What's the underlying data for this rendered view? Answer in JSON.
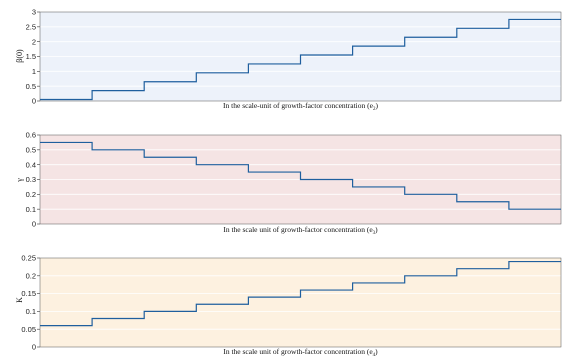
{
  "chart_data": [
    {
      "type": "line",
      "step": true,
      "bg_color": "#edf2fa",
      "line_color": "#1f5f9e",
      "ylabel": "β(0)",
      "xlabel": "In the scale-unit of growth-factor concentration (e",
      "xlabel_sub": "2",
      "xlabel_end": ")",
      "ylim": [
        0,
        3
      ],
      "yticks": [
        0,
        0.5,
        1,
        1.5,
        2,
        2.5,
        3
      ],
      "ytick_labels": [
        "0",
        "0.5",
        "1",
        "1.5",
        "2",
        "2.5",
        "3"
      ],
      "grid": true,
      "values": [
        0.05,
        0.35,
        0.65,
        0.95,
        1.25,
        1.55,
        1.85,
        2.15,
        2.45,
        2.75
      ]
    },
    {
      "type": "line",
      "step": true,
      "bg_color": "#f5e4e4",
      "line_color": "#1f5f9e",
      "ylabel": "γ",
      "xlabel": "In the scale unit of growth-factor concentration (e",
      "xlabel_sub": "3",
      "xlabel_end": ")",
      "ylim": [
        0,
        0.6
      ],
      "yticks": [
        0,
        0.1,
        0.2,
        0.3,
        0.4,
        0.5,
        0.6
      ],
      "ytick_labels": [
        "0",
        "0.1",
        "0.2",
        "0.3",
        "0.4",
        "0.5",
        "0.6"
      ],
      "grid": true,
      "values": [
        0.55,
        0.5,
        0.45,
        0.4,
        0.35,
        0.3,
        0.25,
        0.2,
        0.15,
        0.1
      ]
    },
    {
      "type": "line",
      "step": true,
      "bg_color": "#fdf1e0",
      "line_color": "#1f5f9e",
      "ylabel": "K",
      "xlabel": "In the scale unit of growth-factor concentration (e",
      "xlabel_sub": "4",
      "xlabel_end": ")",
      "ylim": [
        0,
        0.25
      ],
      "yticks": [
        0,
        0.05,
        0.1,
        0.15,
        0.2,
        0.25
      ],
      "ytick_labels": [
        "0",
        "0.05",
        "0.1",
        "0.15",
        "0.2",
        "0.25"
      ],
      "grid": true,
      "values": [
        0.06,
        0.08,
        0.1,
        0.12,
        0.14,
        0.16,
        0.18,
        0.2,
        0.22,
        0.24
      ]
    }
  ]
}
